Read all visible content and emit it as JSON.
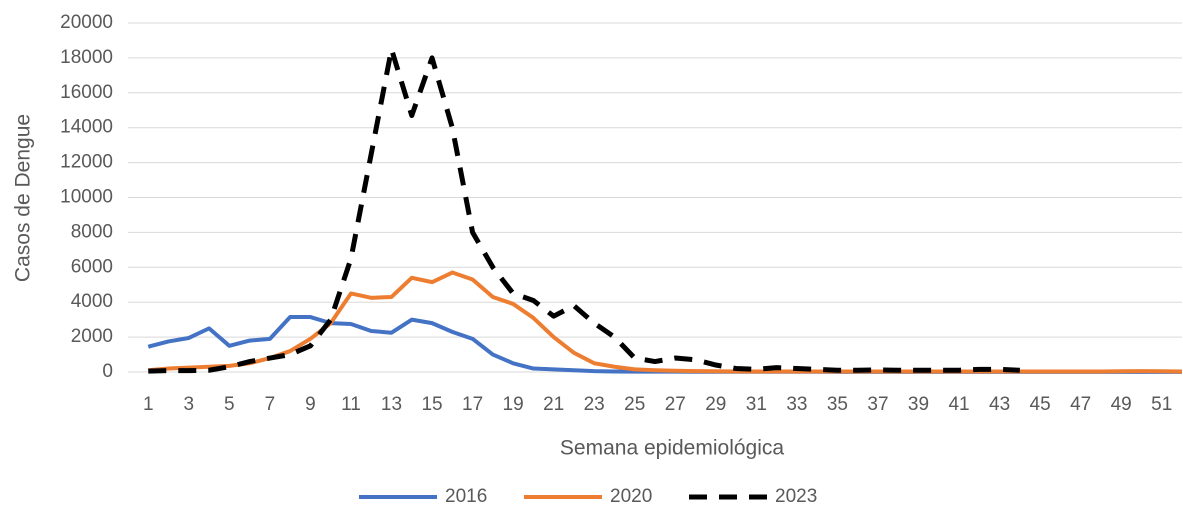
{
  "chart_data": {
    "type": "line",
    "x_label": "Semana epidemiológica",
    "y_label": "Casos de Dengue",
    "x": [
      1,
      2,
      3,
      4,
      5,
      6,
      7,
      8,
      9,
      10,
      11,
      12,
      13,
      14,
      15,
      16,
      17,
      18,
      19,
      20,
      21,
      22,
      23,
      24,
      25,
      26,
      27,
      28,
      29,
      30,
      31,
      32,
      33,
      34,
      35,
      36,
      37,
      38,
      39,
      40,
      41,
      42,
      43,
      44,
      45,
      46,
      47,
      48,
      49,
      50,
      51,
      52
    ],
    "xlim": [
      0,
      52
    ],
    "xticks": [
      1,
      3,
      5,
      7,
      9,
      11,
      13,
      15,
      17,
      19,
      21,
      23,
      25,
      27,
      29,
      31,
      33,
      35,
      37,
      39,
      41,
      43,
      45,
      47,
      49,
      51
    ],
    "ylim": [
      0,
      20000
    ],
    "yticks": [
      0,
      2000,
      4000,
      6000,
      8000,
      10000,
      12000,
      14000,
      16000,
      18000,
      20000
    ],
    "grid": true,
    "legend": "bottom",
    "series": [
      {
        "name": "2016",
        "color": "#4472c4",
        "dash": false,
        "values": [
          1450,
          1750,
          1950,
          2500,
          1500,
          1800,
          1900,
          3150,
          3150,
          2800,
          2750,
          2350,
          2250,
          3000,
          2800,
          2300,
          1900,
          1000,
          500,
          200,
          150,
          100,
          50,
          30,
          20,
          20,
          20,
          15,
          15,
          15,
          15,
          15,
          15,
          15,
          10,
          10,
          10,
          10,
          10,
          10,
          10,
          10,
          10,
          10,
          10,
          10,
          10,
          10,
          10,
          10,
          10,
          10
        ]
      },
      {
        "name": "2020",
        "color": "#ed7d31",
        "dash": false,
        "values": [
          100,
          200,
          250,
          300,
          350,
          500,
          800,
          1200,
          1900,
          2800,
          4500,
          4250,
          4300,
          5400,
          5150,
          5700,
          5300,
          4300,
          3900,
          3100,
          2000,
          1100,
          500,
          300,
          150,
          100,
          70,
          50,
          40,
          30,
          30,
          30,
          30,
          30,
          30,
          30,
          30,
          30,
          30,
          30,
          30,
          30,
          30,
          30,
          30,
          30,
          30,
          30,
          40,
          50,
          40,
          30
        ]
      },
      {
        "name": "2023",
        "color": "#000000",
        "dash": true,
        "values": [
          50,
          80,
          80,
          100,
          300,
          600,
          800,
          1000,
          1500,
          3000,
          6500,
          12500,
          18500,
          14700,
          18000,
          14000,
          8000,
          6000,
          4500,
          4100,
          3200,
          3800,
          2800,
          2000,
          800,
          600,
          800,
          700,
          400,
          200,
          150,
          250,
          200,
          150,
          100,
          100,
          120,
          100,
          100,
          100,
          100,
          150,
          150,
          100,
          null,
          null,
          null,
          null,
          null,
          null,
          null,
          null
        ]
      }
    ]
  }
}
